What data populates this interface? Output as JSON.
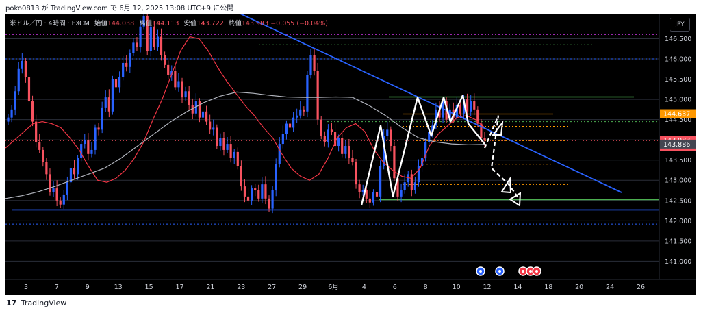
{
  "caption": "poko0813 が TradingView.com で 6月 12, 2025 13:08 UTC+9 に公開",
  "legend": {
    "symbol": "米ドル／円 · 4時間 · FXCM",
    "open_label": "始値",
    "open": "144.038",
    "high_label": "高値",
    "high": "144.113",
    "low_label": "安値",
    "low": "143.722",
    "close_label": "終値",
    "close": "143.983",
    "change": "−0.055 (−0.04%)"
  },
  "currency_button": "JPY",
  "footer": {
    "logo": "17",
    "brand": "TradingView"
  },
  "colors": {
    "background": "#000000",
    "grid": "#2a2e39",
    "up": "#2962ff",
    "down": "#f7525f",
    "ma_fast": "#f23645",
    "ma_slow": "#b2b5be",
    "trendline": "#2962ff",
    "support": "#4caf50",
    "orange": "#ff9800",
    "purple": "#9c27b0",
    "pattern": "#ffffff"
  },
  "chart_data": {
    "type": "candlestick",
    "x_tick_labels": [
      "3",
      "7",
      "9",
      "13",
      "15",
      "17",
      "21",
      "23",
      "27",
      "29",
      "6月",
      "4",
      "6",
      "8",
      "10",
      "12",
      "14",
      "18",
      "20",
      "24",
      "26"
    ],
    "y_tick_labels": [
      "146.500",
      "146.000",
      "145.500",
      "145.000",
      "144.500",
      "144.000",
      "143.500",
      "143.000",
      "142.500",
      "142.000",
      "141.500",
      "141.000"
    ],
    "ylim": [
      140.55,
      147.1
    ],
    "price_badges": [
      {
        "value": "144.637",
        "kind": "orange"
      },
      {
        "value": "143.983",
        "sub": "51:24",
        "kind": "last"
      },
      {
        "value": "143.886",
        "kind": "ma"
      }
    ],
    "candles_close": [
      144.55,
      144.75,
      145.2,
      145.75,
      145.95,
      145.55,
      144.95,
      144.45,
      143.95,
      143.75,
      143.45,
      143.15,
      142.7,
      142.8,
      142.5,
      142.4,
      142.65,
      142.95,
      143.3,
      143.15,
      143.55,
      143.9,
      144.0,
      143.65,
      143.75,
      144.3,
      144.25,
      144.8,
      145.05,
      144.7,
      145.5,
      145.3,
      145.55,
      145.9,
      145.8,
      146.15,
      146.4,
      146.3,
      146.8,
      147.05,
      146.2,
      146.8,
      146.3,
      146.55,
      146.1,
      145.85,
      145.6,
      145.7,
      145.3,
      145.45,
      145.05,
      145.2,
      144.85,
      144.65,
      144.95,
      144.55,
      144.7,
      144.45,
      144.25,
      144.3,
      143.85,
      144.05,
      143.75,
      143.9,
      143.55,
      143.7,
      143.35,
      142.85,
      142.6,
      142.5,
      142.8,
      142.75,
      142.55,
      142.9,
      142.55,
      142.3,
      142.75,
      143.4,
      143.9,
      144.15,
      144.4,
      144.3,
      144.55,
      144.6,
      144.75,
      144.7,
      145.6,
      146.1,
      145.7,
      144.5,
      144.1,
      143.95,
      144.25,
      144.2,
      143.85,
      144.05,
      143.65,
      143.85,
      143.55,
      143.45,
      142.9,
      142.7,
      142.75,
      142.55,
      142.45,
      142.7,
      142.6,
      143.35,
      144.1,
      144.25,
      143.85,
      143.05,
      142.6,
      142.75,
      142.95,
      143.15,
      142.75,
      142.95,
      143.35,
      143.55,
      143.95,
      144.2,
      144.35,
      144.75,
      144.55,
      144.95,
      144.5,
      144.75,
      144.55,
      144.85,
      144.65,
      145.0,
      144.7,
      144.95,
      144.75,
      144.4,
      144.05,
      143.98
    ],
    "moving_averages": [
      {
        "kind": "fast",
        "color": "#f23645",
        "values": [
          143.8,
          144.0,
          144.2,
          144.4,
          144.45,
          144.4,
          144.3,
          144.05,
          143.75,
          143.35,
          143.0,
          142.95,
          143.05,
          143.25,
          143.55,
          143.95,
          144.5,
          145.0,
          145.6,
          146.2,
          146.55,
          146.5,
          146.2,
          145.8,
          145.45,
          145.15,
          144.85,
          144.6,
          144.3,
          144.05,
          143.65,
          143.3,
          143.1,
          143.0,
          143.15,
          143.55,
          144.05,
          144.3,
          144.4,
          144.2,
          143.75,
          143.45,
          143.25,
          143.1,
          143.05,
          143.3,
          143.85,
          144.15,
          144.35,
          144.55,
          144.6,
          144.5,
          144.3
        ]
      },
      {
        "kind": "slow",
        "color": "#b2b5be",
        "values": [
          142.55,
          142.62,
          142.72,
          142.85,
          143.0,
          143.15,
          143.3,
          143.55,
          143.85,
          144.15,
          144.45,
          144.7,
          144.92,
          145.08,
          145.18,
          145.15,
          145.1,
          145.06,
          145.05,
          145.05,
          145.06,
          145.05,
          144.85,
          144.6,
          144.3,
          144.05,
          143.95,
          143.9,
          143.88,
          143.886
        ]
      }
    ],
    "drawings": {
      "trendline": [
        [
          147.22,
          142.7
        ]
      ],
      "support_lines": [
        142.27,
        142.52,
        145.06
      ],
      "dotted_levels": [
        146.6,
        146.0,
        144.45,
        143.87,
        141.92
      ],
      "orange_levels": [
        144.637,
        144.33,
        143.983,
        143.4,
        142.9
      ],
      "pattern_path": [
        142.38,
        144.35,
        142.6,
        145.05,
        144.1,
        145.05,
        144.45,
        145.1,
        144.4,
        143.9
      ],
      "arrow_path": [
        143.8,
        144.6,
        143.3,
        142.9,
        142.55
      ]
    },
    "event_markers": 5
  }
}
